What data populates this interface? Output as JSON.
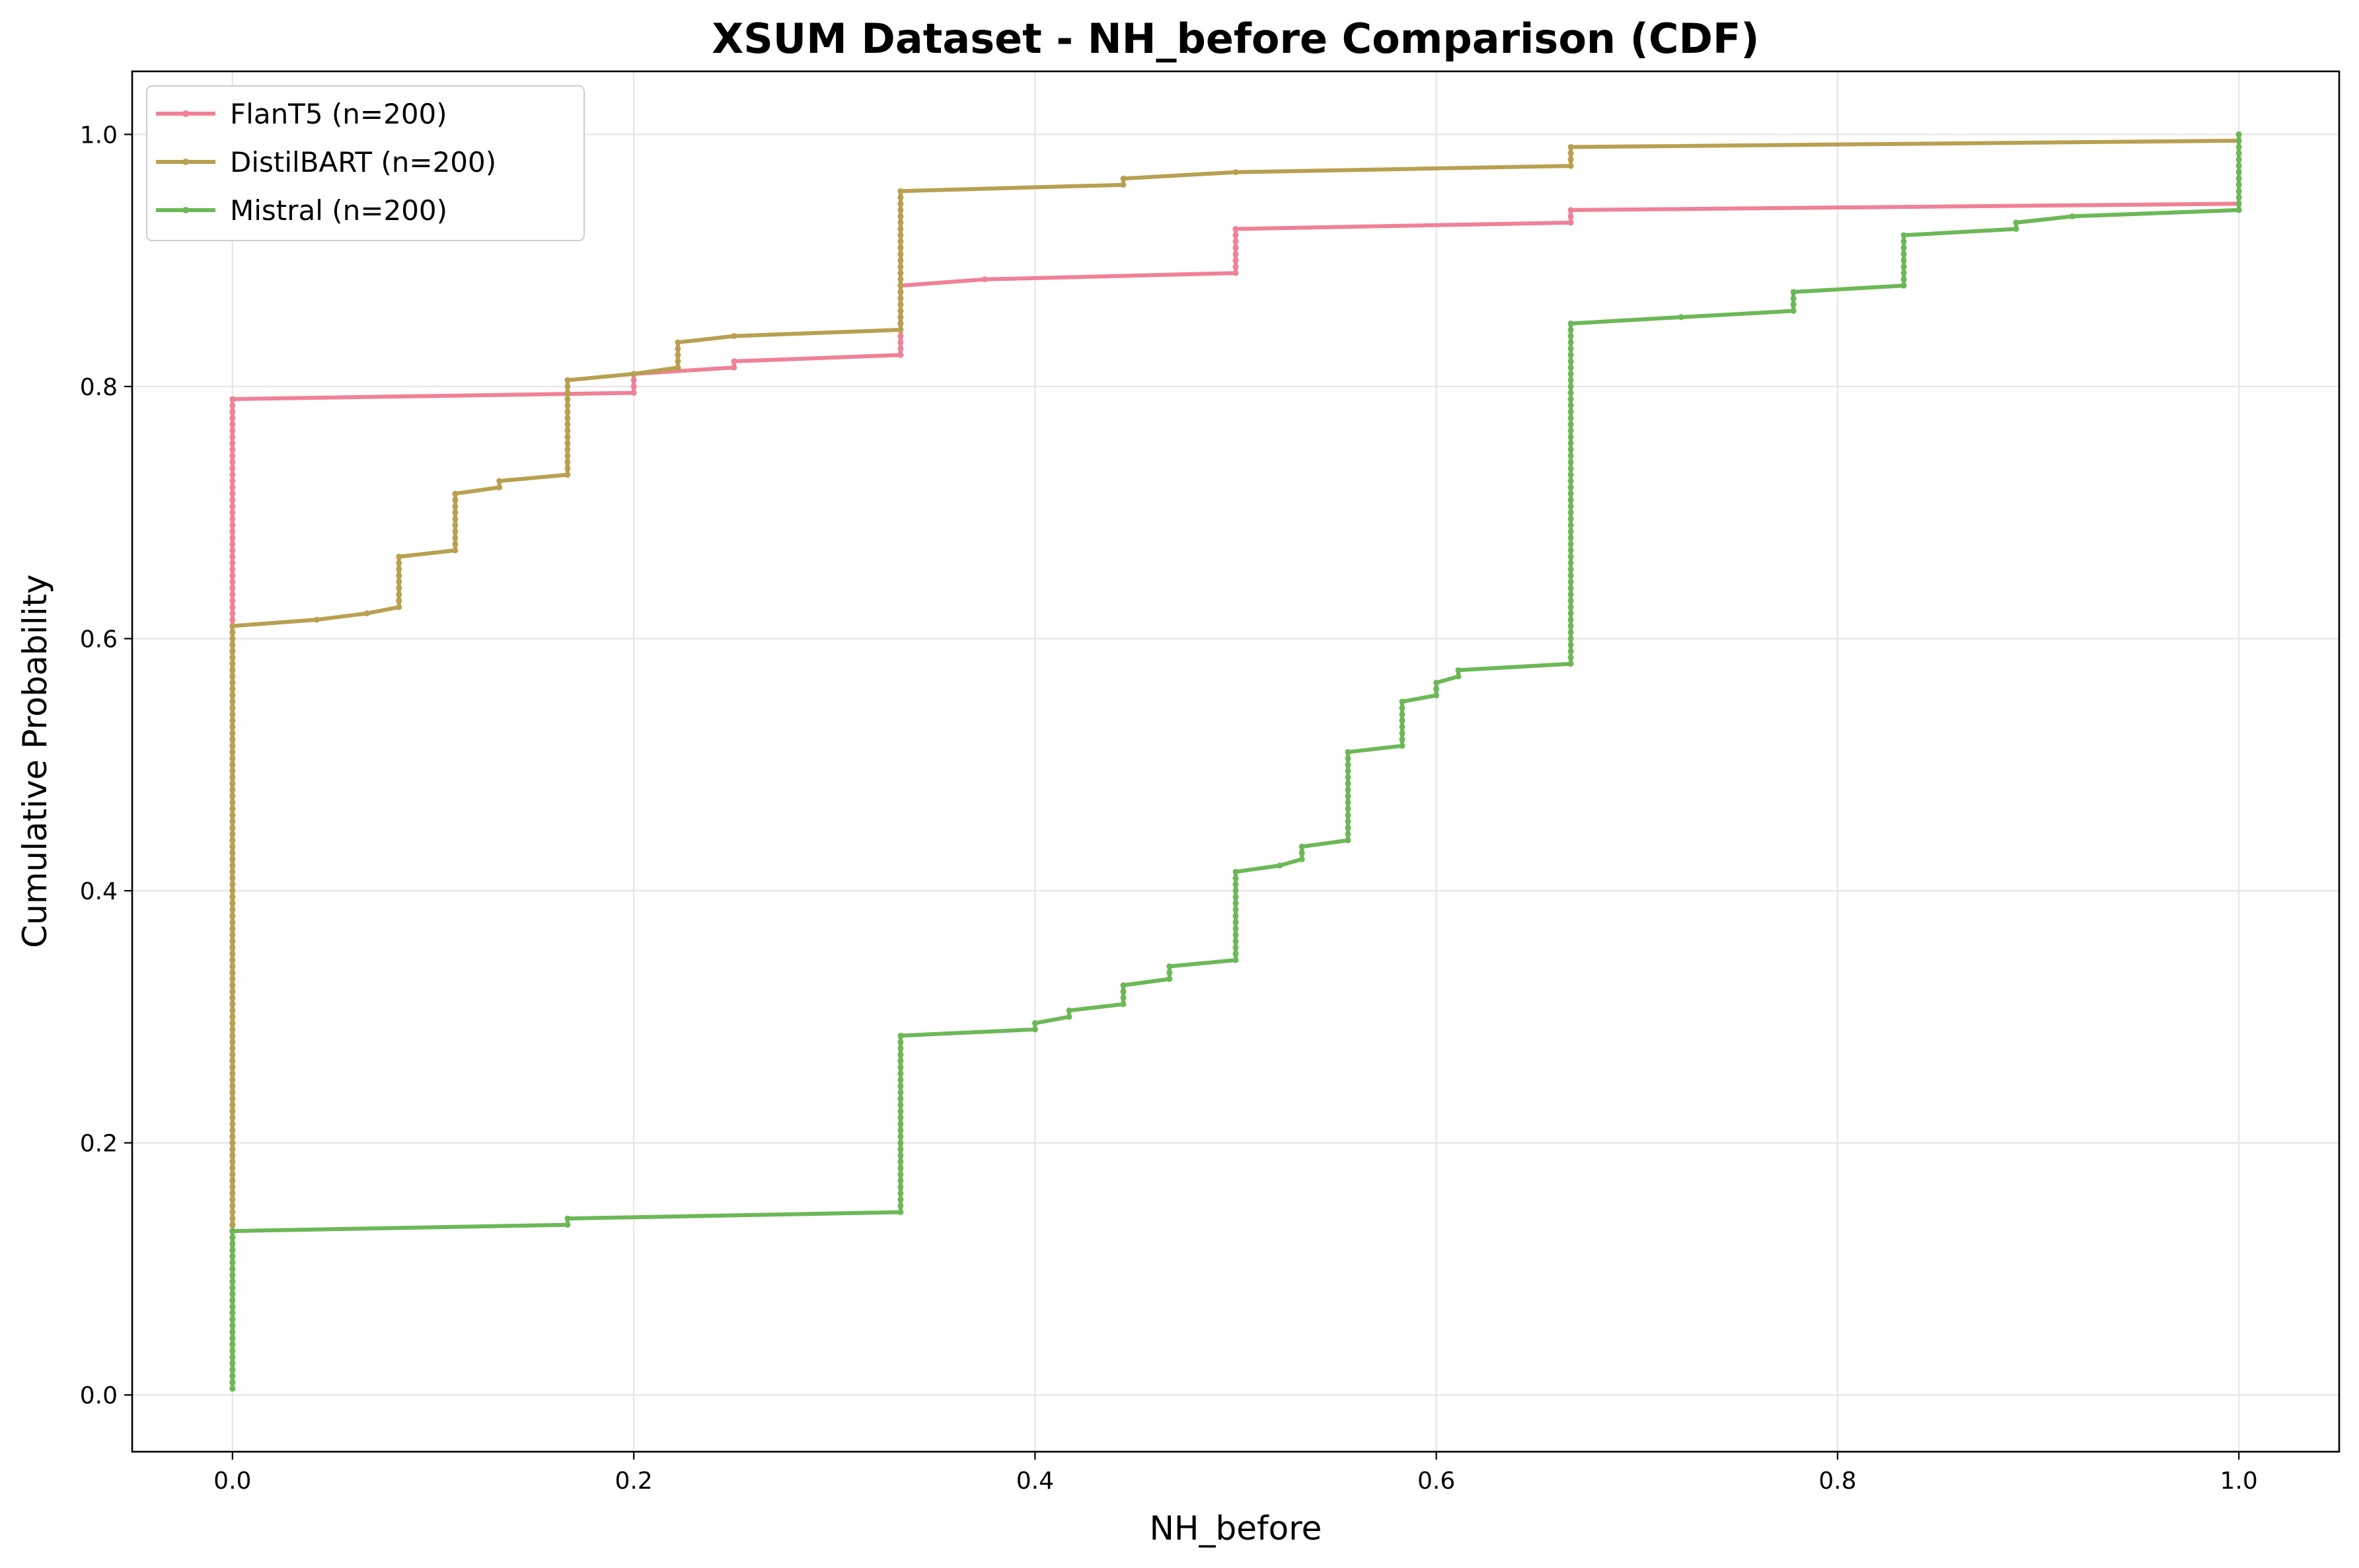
{
  "chart_data": {
    "type": "line",
    "title": "XSUM Dataset - NH_before Comparison (CDF)",
    "xlabel": "NH_before",
    "ylabel": "Cumulative Probability",
    "xlim": [
      -0.05,
      1.05
    ],
    "ylim": [
      -0.045,
      1.05
    ],
    "xticks": [
      0.0,
      0.2,
      0.4,
      0.6,
      0.8,
      1.0
    ],
    "xtick_labels": [
      "0.0",
      "0.2",
      "0.4",
      "0.6",
      "0.8",
      "1.0"
    ],
    "yticks": [
      0.0,
      0.2,
      0.4,
      0.6,
      0.8,
      1.0
    ],
    "ytick_labels": [
      "0.0",
      "0.2",
      "0.4",
      "0.6",
      "0.8",
      "1.0"
    ],
    "grid": true,
    "legend_position": "top-left",
    "series": [
      {
        "name": "FlanT5 (n=200)",
        "color": "#f08196",
        "steps": [
          [
            0.0,
            0.005
          ],
          [
            0.0,
            0.79
          ],
          [
            0.2,
            0.795
          ],
          [
            0.2,
            0.81
          ],
          [
            0.25,
            0.815
          ],
          [
            0.25,
            0.82
          ],
          [
            0.333,
            0.825
          ],
          [
            0.333,
            0.88
          ],
          [
            0.375,
            0.885
          ],
          [
            0.5,
            0.89
          ],
          [
            0.5,
            0.925
          ],
          [
            0.667,
            0.93
          ],
          [
            0.667,
            0.94
          ],
          [
            1.0,
            0.945
          ]
        ]
      },
      {
        "name": "DistilBART (n=200)",
        "color": "#b9a050",
        "steps": [
          [
            0.0,
            0.005
          ],
          [
            0.0,
            0.61
          ],
          [
            0.042,
            0.615
          ],
          [
            0.067,
            0.62
          ],
          [
            0.083,
            0.625
          ],
          [
            0.083,
            0.665
          ],
          [
            0.111,
            0.67
          ],
          [
            0.111,
            0.715
          ],
          [
            0.133,
            0.72
          ],
          [
            0.133,
            0.725
          ],
          [
            0.167,
            0.73
          ],
          [
            0.167,
            0.805
          ],
          [
            0.2,
            0.81
          ],
          [
            0.222,
            0.815
          ],
          [
            0.222,
            0.835
          ],
          [
            0.25,
            0.84
          ],
          [
            0.333,
            0.845
          ],
          [
            0.333,
            0.955
          ],
          [
            0.444,
            0.96
          ],
          [
            0.444,
            0.965
          ],
          [
            0.5,
            0.97
          ],
          [
            0.667,
            0.975
          ],
          [
            0.667,
            0.99
          ],
          [
            1.0,
            0.995
          ],
          [
            1.0,
            1.0
          ]
        ]
      },
      {
        "name": "Mistral (n=200)",
        "color": "#6cb856",
        "steps": [
          [
            0.0,
            0.005
          ],
          [
            0.0,
            0.13
          ],
          [
            0.167,
            0.135
          ],
          [
            0.167,
            0.14
          ],
          [
            0.333,
            0.145
          ],
          [
            0.333,
            0.285
          ],
          [
            0.4,
            0.29
          ],
          [
            0.4,
            0.295
          ],
          [
            0.417,
            0.3
          ],
          [
            0.417,
            0.305
          ],
          [
            0.444,
            0.31
          ],
          [
            0.444,
            0.325
          ],
          [
            0.467,
            0.33
          ],
          [
            0.467,
            0.34
          ],
          [
            0.5,
            0.345
          ],
          [
            0.5,
            0.415
          ],
          [
            0.522,
            0.42
          ],
          [
            0.533,
            0.425
          ],
          [
            0.533,
            0.435
          ],
          [
            0.556,
            0.44
          ],
          [
            0.556,
            0.51
          ],
          [
            0.583,
            0.515
          ],
          [
            0.583,
            0.55
          ],
          [
            0.6,
            0.555
          ],
          [
            0.6,
            0.565
          ],
          [
            0.611,
            0.57
          ],
          [
            0.611,
            0.575
          ],
          [
            0.667,
            0.58
          ],
          [
            0.667,
            0.85
          ],
          [
            0.722,
            0.855
          ],
          [
            0.778,
            0.86
          ],
          [
            0.778,
            0.875
          ],
          [
            0.833,
            0.88
          ],
          [
            0.833,
            0.92
          ],
          [
            0.889,
            0.925
          ],
          [
            0.889,
            0.93
          ],
          [
            0.917,
            0.935
          ],
          [
            1.0,
            0.94
          ],
          [
            1.0,
            1.0
          ]
        ]
      }
    ]
  }
}
